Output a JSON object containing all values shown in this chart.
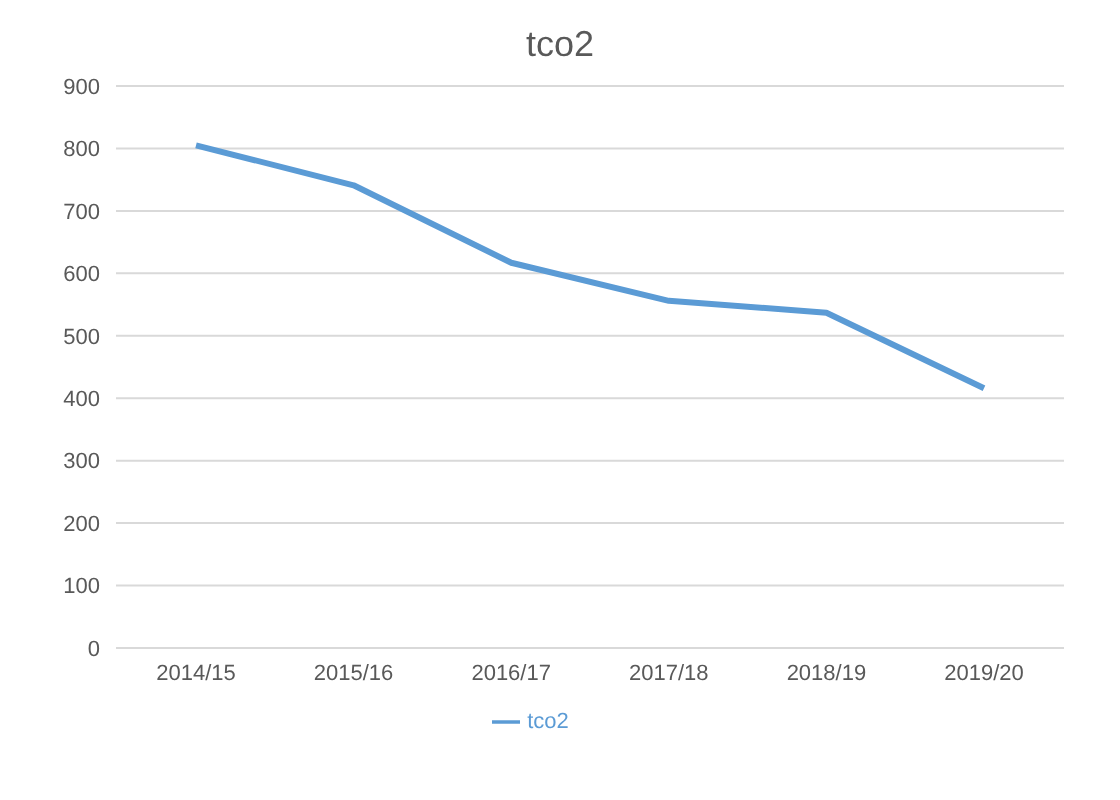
{
  "chart_data": {
    "type": "line",
    "title": "tco2",
    "categories": [
      "2014/15",
      "2015/16",
      "2016/17",
      "2017/18",
      "2018/19",
      "2019/20"
    ],
    "series": [
      {
        "name": "tco2",
        "color": "#5b9bd5",
        "values": [
          805,
          741,
          617,
          556,
          537,
          416
        ]
      }
    ],
    "ylim": [
      0,
      900
    ],
    "yticks": [
      0,
      100,
      200,
      300,
      400,
      500,
      600,
      700,
      800,
      900
    ],
    "grid": "y",
    "legend": "bottom",
    "marker": "none",
    "line_style": "solid"
  }
}
